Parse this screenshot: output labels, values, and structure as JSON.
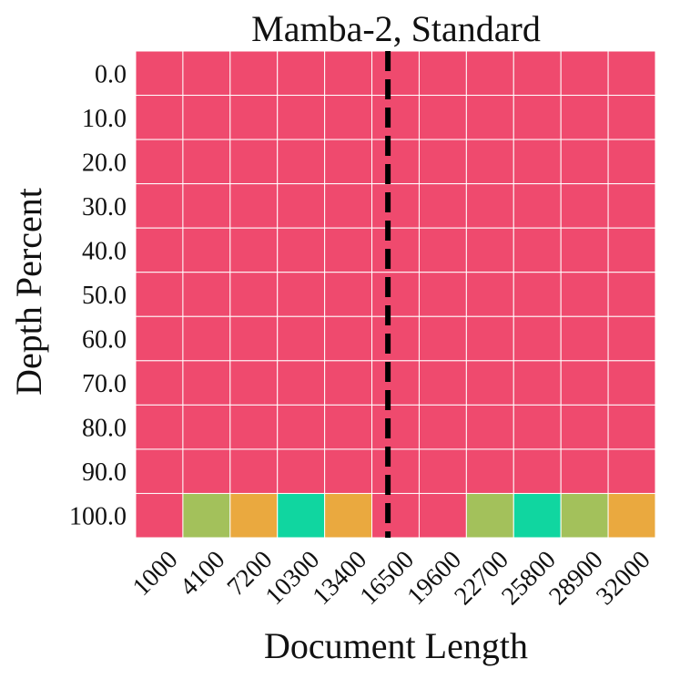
{
  "chart_data": {
    "type": "heatmap",
    "title": "Mamba-2, Standard",
    "xlabel": "Document Length",
    "ylabel": "Depth Percent",
    "x": [
      "1000",
      "4100",
      "7200",
      "10300",
      "13400",
      "16500",
      "19600",
      "22700",
      "25800",
      "28900",
      "32000"
    ],
    "y": [
      "0.0",
      "10.0",
      "20.0",
      "30.0",
      "40.0",
      "50.0",
      "60.0",
      "70.0",
      "80.0",
      "90.0",
      "100.0"
    ],
    "values": [
      [
        1,
        1,
        1,
        1,
        1,
        1,
        1,
        1,
        1,
        1,
        1
      ],
      [
        1,
        1,
        1,
        1,
        1,
        1,
        1,
        1,
        1,
        1,
        1
      ],
      [
        1,
        1,
        1,
        1,
        1,
        1,
        1,
        1,
        1,
        1,
        1
      ],
      [
        1,
        1,
        1,
        1,
        1,
        1,
        1,
        1,
        1,
        1,
        1
      ],
      [
        1,
        1,
        1,
        1,
        1,
        1,
        1,
        1,
        1,
        1,
        1
      ],
      [
        1,
        1,
        1,
        1,
        1,
        1,
        1,
        1,
        1,
        1,
        1
      ],
      [
        1,
        1,
        1,
        1,
        1,
        1,
        1,
        1,
        1,
        1,
        1
      ],
      [
        1,
        1,
        1,
        1,
        1,
        1,
        1,
        1,
        1,
        1,
        1
      ],
      [
        1,
        1,
        1,
        1,
        1,
        1,
        1,
        1,
        1,
        1,
        1
      ],
      [
        1,
        1,
        1,
        1,
        1,
        1,
        1,
        1,
        1,
        1,
        1
      ],
      [
        1,
        6,
        4,
        10,
        4,
        1,
        1,
        6,
        10,
        6,
        4
      ]
    ],
    "color_scale": {
      "1": "#ef4a6e",
      "4": "#eaa93f",
      "6": "#a3c15b",
      "10": "#10d6a0"
    },
    "cell_border_color": "#ffffff",
    "reference_line": {
      "x": 16000,
      "style": "dashed",
      "color": "#000000"
    },
    "legend": "none",
    "grid": false
  }
}
